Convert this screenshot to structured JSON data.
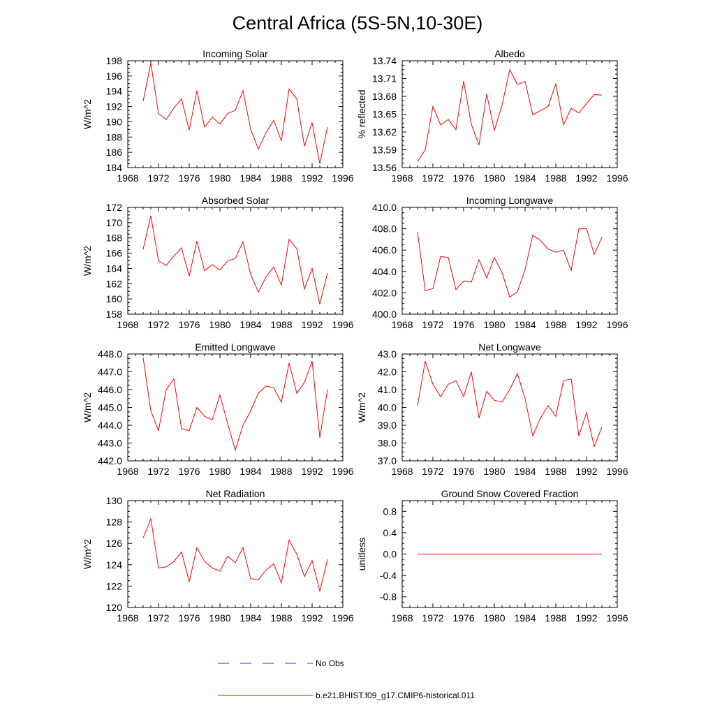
{
  "figure": {
    "title": "Central Africa (5S-5N,10-30E)"
  },
  "chart_data": [
    {
      "type": "line",
      "title": "Incoming Solar",
      "ylabel": "W/m^2",
      "xlim": [
        1968,
        1996
      ],
      "xticks": [
        1968,
        1972,
        1976,
        1980,
        1984,
        1988,
        1992,
        1996
      ],
      "ylim": [
        184,
        198
      ],
      "yticks": [
        184,
        186,
        188,
        190,
        192,
        194,
        196,
        198
      ],
      "ytick_decimals": 0,
      "series": [
        {
          "color": "#ff0000",
          "x": [
            1970,
            1971,
            1972,
            1973,
            1974,
            1975,
            1976,
            1977,
            1978,
            1979,
            1980,
            1981,
            1982,
            1983,
            1984,
            1985,
            1986,
            1987,
            1988,
            1989,
            1990,
            1991,
            1992,
            1993,
            1994
          ],
          "y": [
            192.7,
            197.7,
            191.1,
            190.3,
            191.8,
            193.0,
            188.9,
            194.1,
            189.3,
            190.6,
            189.7,
            191.1,
            191.5,
            194.1,
            189.0,
            186.4,
            188.6,
            190.2,
            187.5,
            194.3,
            193.0,
            186.8,
            189.9,
            184.5,
            189.3
          ]
        }
      ]
    },
    {
      "type": "line",
      "title": "Albedo",
      "ylabel": "% reflected",
      "xlim": [
        1968,
        1996
      ],
      "xticks": [
        1968,
        1972,
        1976,
        1980,
        1984,
        1988,
        1992,
        1996
      ],
      "ylim": [
        13.56,
        13.74
      ],
      "yticks": [
        13.56,
        13.59,
        13.62,
        13.65,
        13.68,
        13.71,
        13.74
      ],
      "ytick_decimals": 2,
      "series": [
        {
          "color": "#ff0000",
          "x": [
            1970,
            1971,
            1972,
            1973,
            1974,
            1975,
            1976,
            1977,
            1978,
            1979,
            1980,
            1981,
            1982,
            1983,
            1984,
            1985,
            1986,
            1987,
            1988,
            1989,
            1990,
            1991,
            1992,
            1993,
            1994
          ],
          "y": [
            13.57,
            13.59,
            13.663,
            13.632,
            13.641,
            13.624,
            13.706,
            13.633,
            13.598,
            13.684,
            13.623,
            13.665,
            13.725,
            13.7,
            13.705,
            13.649,
            13.656,
            13.663,
            13.701,
            13.632,
            13.66,
            13.652,
            13.668,
            13.683,
            13.682
          ]
        }
      ]
    },
    {
      "type": "line",
      "title": "Absorbed Solar",
      "ylabel": "W/m^2",
      "xlim": [
        1968,
        1996
      ],
      "xticks": [
        1968,
        1972,
        1976,
        1980,
        1984,
        1988,
        1992,
        1996
      ],
      "ylim": [
        158,
        172
      ],
      "yticks": [
        158,
        160,
        162,
        164,
        166,
        168,
        170,
        172
      ],
      "ytick_decimals": 0,
      "series": [
        {
          "color": "#ff0000",
          "x": [
            1970,
            1971,
            1972,
            1973,
            1974,
            1975,
            1976,
            1977,
            1978,
            1979,
            1980,
            1981,
            1982,
            1983,
            1984,
            1985,
            1986,
            1987,
            1988,
            1989,
            1990,
            1991,
            1992,
            1993,
            1994
          ],
          "y": [
            166.5,
            170.9,
            165.0,
            164.4,
            165.6,
            166.7,
            163.0,
            167.6,
            163.7,
            164.5,
            163.8,
            165.0,
            165.3,
            167.5,
            163.2,
            160.9,
            162.9,
            164.2,
            161.8,
            167.8,
            166.6,
            161.3,
            164.0,
            159.3,
            163.4
          ]
        }
      ]
    },
    {
      "type": "line",
      "title": "Incoming Longwave",
      "ylabel": "",
      "xlim": [
        1968,
        1996
      ],
      "xticks": [
        1968,
        1972,
        1976,
        1980,
        1984,
        1988,
        1992,
        1996
      ],
      "ylim": [
        400,
        410
      ],
      "yticks": [
        400,
        402,
        404,
        406,
        408,
        410
      ],
      "ytick_decimals": 1,
      "series": [
        {
          "color": "#ff0000",
          "x": [
            1970,
            1971,
            1972,
            1973,
            1974,
            1975,
            1976,
            1977,
            1978,
            1979,
            1980,
            1981,
            1982,
            1983,
            1984,
            1985,
            1986,
            1987,
            1988,
            1989,
            1990,
            1991,
            1992,
            1993,
            1994
          ],
          "y": [
            407.7,
            402.2,
            402.4,
            405.4,
            405.3,
            402.3,
            403.1,
            403.0,
            405.1,
            403.4,
            405.3,
            403.9,
            401.6,
            402.1,
            404.2,
            407.4,
            406.9,
            406.1,
            405.8,
            406.0,
            404.1,
            408.0,
            408.0,
            405.6,
            407.2
          ]
        }
      ]
    },
    {
      "type": "line",
      "title": "Emitted Longwave",
      "ylabel": "W/m^2",
      "xlim": [
        1968,
        1996
      ],
      "xticks": [
        1968,
        1972,
        1976,
        1980,
        1984,
        1988,
        1992,
        1996
      ],
      "ylim": [
        442,
        448
      ],
      "yticks": [
        442,
        443,
        444,
        445,
        446,
        447,
        448
      ],
      "ytick_decimals": 1,
      "series": [
        {
          "color": "#ff0000",
          "x": [
            1970,
            1971,
            1972,
            1973,
            1974,
            1975,
            1976,
            1977,
            1978,
            1979,
            1980,
            1981,
            1982,
            1983,
            1984,
            1985,
            1986,
            1987,
            1988,
            1989,
            1990,
            1991,
            1992,
            1993,
            1994
          ],
          "y": [
            447.8,
            444.8,
            443.7,
            446.0,
            446.6,
            443.8,
            443.7,
            445.0,
            444.5,
            444.3,
            445.7,
            444.1,
            442.6,
            444.0,
            444.8,
            445.8,
            446.2,
            446.1,
            445.3,
            447.5,
            445.8,
            446.4,
            447.6,
            443.3,
            446.0
          ]
        }
      ]
    },
    {
      "type": "line",
      "title": "Net Longwave",
      "ylabel": "W/m^2",
      "xlim": [
        1968,
        1996
      ],
      "xticks": [
        1968,
        1972,
        1976,
        1980,
        1984,
        1988,
        1992,
        1996
      ],
      "ylim": [
        37,
        43
      ],
      "yticks": [
        37,
        38,
        39,
        40,
        41,
        42,
        43
      ],
      "ytick_decimals": 1,
      "series": [
        {
          "color": "#ff0000",
          "x": [
            1970,
            1971,
            1972,
            1973,
            1974,
            1975,
            1976,
            1977,
            1978,
            1979,
            1980,
            1981,
            1982,
            1983,
            1984,
            1985,
            1986,
            1987,
            1988,
            1989,
            1990,
            1991,
            1992,
            1993,
            1994
          ],
          "y": [
            40.1,
            42.6,
            41.3,
            40.6,
            41.3,
            41.5,
            40.6,
            42.0,
            39.4,
            40.9,
            40.4,
            40.3,
            41.0,
            41.9,
            40.5,
            38.4,
            39.4,
            40.1,
            39.5,
            41.5,
            41.6,
            38.4,
            39.7,
            37.8,
            38.9
          ]
        }
      ]
    },
    {
      "type": "line",
      "title": "Net Radiation",
      "ylabel": "W/m^2",
      "xlim": [
        1968,
        1996
      ],
      "xticks": [
        1968,
        1972,
        1976,
        1980,
        1984,
        1988,
        1992,
        1996
      ],
      "ylim": [
        120,
        130
      ],
      "yticks": [
        120,
        122,
        124,
        126,
        128,
        130
      ],
      "ytick_decimals": 0,
      "series": [
        {
          "color": "#ff0000",
          "x": [
            1970,
            1971,
            1972,
            1973,
            1974,
            1975,
            1976,
            1977,
            1978,
            1979,
            1980,
            1981,
            1982,
            1983,
            1984,
            1985,
            1986,
            1987,
            1988,
            1989,
            1990,
            1991,
            1992,
            1993,
            1994
          ],
          "y": [
            126.5,
            128.3,
            123.7,
            123.8,
            124.3,
            125.2,
            122.4,
            125.6,
            124.3,
            123.7,
            123.4,
            124.8,
            124.2,
            125.6,
            122.7,
            122.6,
            123.5,
            124.1,
            122.3,
            126.3,
            125.0,
            122.9,
            124.4,
            121.5,
            124.5
          ]
        }
      ]
    },
    {
      "type": "line",
      "title": "Ground Snow Covered Fraction",
      "ylabel": "unitless",
      "xlim": [
        1968,
        1996
      ],
      "xticks": [
        1968,
        1972,
        1976,
        1980,
        1984,
        1988,
        1992,
        1996
      ],
      "ylim": [
        -1.0,
        1.0
      ],
      "yticks": [
        -0.8,
        -0.4,
        0.0,
        0.4,
        0.8
      ],
      "ytick_decimals": 1,
      "series": [
        {
          "color": "#ff0000",
          "x": [
            1970,
            1971,
            1972,
            1973,
            1974,
            1975,
            1976,
            1977,
            1978,
            1979,
            1980,
            1981,
            1982,
            1983,
            1984,
            1985,
            1986,
            1987,
            1988,
            1989,
            1990,
            1991,
            1992,
            1993,
            1994
          ],
          "y": [
            0,
            0,
            0,
            0,
            0,
            0,
            0,
            0,
            0,
            0,
            0,
            0,
            0,
            0,
            0,
            0,
            0,
            0,
            0,
            0,
            0,
            0,
            0,
            0,
            0
          ]
        }
      ]
    }
  ],
  "legend": [
    {
      "label": "No Obs",
      "color": "#3333cc",
      "style": "dashed"
    },
    {
      "label": "b.e21.BHIST.f09_g17.CMIP6-historical.011",
      "color": "#ff0000",
      "style": "solid"
    }
  ]
}
